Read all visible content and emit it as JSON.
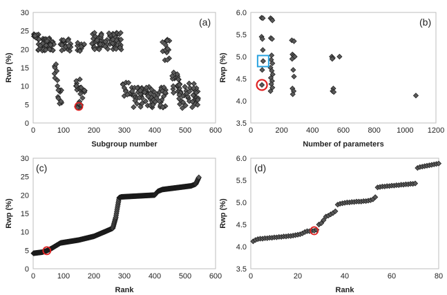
{
  "chart_data": [
    {
      "panel": "a",
      "type": "scatter",
      "label": "(a)",
      "xlabel": "Subgroup number",
      "ylabel": "Rwp (%)",
      "xlim": [
        0,
        600
      ],
      "ylim": [
        0,
        30
      ],
      "xticks": [
        "0",
        "100",
        "200",
        "300",
        "400",
        "500",
        "600"
      ],
      "yticks": [
        "0",
        "5",
        "10",
        "15",
        "20",
        "25",
        "30"
      ],
      "grid": false,
      "marker": "diamond",
      "clusters": [
        {
          "x": [
            2,
            20
          ],
          "y": [
            22.5,
            24.5
          ],
          "n": 12
        },
        {
          "x": [
            15,
            40
          ],
          "y": [
            19.5,
            23
          ],
          "n": 22
        },
        {
          "x": [
            40,
            70
          ],
          "y": [
            19.5,
            23
          ],
          "n": 24
        },
        {
          "x": [
            70,
            80
          ],
          "y": [
            10,
            19
          ],
          "n": 8
        },
        {
          "x": [
            80,
            95
          ],
          "y": [
            5,
            10
          ],
          "n": 10
        },
        {
          "x": [
            88,
            125
          ],
          "y": [
            19.5,
            23
          ],
          "n": 20
        },
        {
          "x": [
            140,
            170
          ],
          "y": [
            4,
            12
          ],
          "n": 24
        },
        {
          "x": [
            145,
            170
          ],
          "y": [
            19.5,
            22
          ],
          "n": 10
        },
        {
          "x": [
            190,
            290
          ],
          "y": [
            19.5,
            24.5
          ],
          "n": 70
        },
        {
          "x": [
            290,
            330
          ],
          "y": [
            6,
            11
          ],
          "n": 14
        },
        {
          "x": [
            330,
            440
          ],
          "y": [
            4,
            10
          ],
          "n": 70
        },
        {
          "x": [
            425,
            450
          ],
          "y": [
            17,
            23
          ],
          "n": 14
        },
        {
          "x": [
            455,
            480
          ],
          "y": [
            8,
            14
          ],
          "n": 14
        },
        {
          "x": [
            475,
            550
          ],
          "y": [
            4,
            11
          ],
          "n": 50
        }
      ],
      "highlight": {
        "x": 150,
        "y": 4.5,
        "color": "#e02020"
      }
    },
    {
      "panel": "b",
      "type": "scatter",
      "label": "(b)",
      "xlabel": "Number of parameters",
      "ylabel": "Rwp (%)",
      "xlim": [
        0,
        1200
      ],
      "ylim": [
        3.5,
        6.0
      ],
      "xticks": [
        "0",
        "200",
        "400",
        "600",
        "800",
        "1000",
        "1200"
      ],
      "yticks": [
        "3.5",
        "4.0",
        "4.5",
        "5.0",
        "5.5",
        "6.0"
      ],
      "grid": false,
      "marker": "diamond",
      "points": [
        [
          70,
          5.88
        ],
        [
          78,
          5.87
        ],
        [
          70,
          5.45
        ],
        [
          75,
          5.4
        ],
        [
          78,
          5.15
        ],
        [
          80,
          4.9
        ],
        [
          74,
          4.7
        ],
        [
          72,
          4.36
        ],
        [
          128,
          5.87
        ],
        [
          135,
          5.85
        ],
        [
          140,
          5.82
        ],
        [
          130,
          5.42
        ],
        [
          138,
          5.4
        ],
        [
          135,
          5.03
        ],
        [
          132,
          4.93
        ],
        [
          140,
          4.85
        ],
        [
          128,
          4.75
        ],
        [
          136,
          4.68
        ],
        [
          142,
          4.6
        ],
        [
          130,
          4.52
        ],
        [
          138,
          4.45
        ],
        [
          133,
          4.38
        ],
        [
          140,
          4.3
        ],
        [
          128,
          4.22
        ],
        [
          266,
          5.37
        ],
        [
          280,
          5.35
        ],
        [
          270,
          5.05
        ],
        [
          278,
          5.02
        ],
        [
          285,
          5.0
        ],
        [
          268,
          4.95
        ],
        [
          275,
          4.7
        ],
        [
          280,
          4.55
        ],
        [
          270,
          4.28
        ],
        [
          278,
          4.22
        ],
        [
          272,
          4.15
        ],
        [
          525,
          5.0
        ],
        [
          532,
          4.97
        ],
        [
          528,
          4.95
        ],
        [
          535,
          4.28
        ],
        [
          530,
          4.22
        ],
        [
          538,
          4.2
        ],
        [
          575,
          5.0
        ],
        [
          1070,
          4.12
        ]
      ],
      "highlight_circle": {
        "x": 72,
        "y": 4.36,
        "color": "#e02020"
      },
      "highlight_box": {
        "x": 80,
        "y": 4.9,
        "color": "#29a3e0"
      }
    },
    {
      "panel": "c",
      "type": "line",
      "label": "(c)",
      "xlabel": "Rank",
      "ylabel": "Rwp (%)",
      "xlim": [
        0,
        600
      ],
      "ylim": [
        0,
        30
      ],
      "xticks": [
        "0",
        "100",
        "200",
        "300",
        "400",
        "500",
        "600"
      ],
      "yticks": [
        "0",
        "5",
        "10",
        "15",
        "20",
        "25",
        "30"
      ],
      "grid": false,
      "marker": "diamond",
      "n_points": 545,
      "curve": [
        [
          1,
          4.2
        ],
        [
          30,
          4.5
        ],
        [
          45,
          4.9
        ],
        [
          60,
          5.5
        ],
        [
          90,
          7.0
        ],
        [
          150,
          7.8
        ],
        [
          200,
          8.8
        ],
        [
          240,
          10.2
        ],
        [
          262,
          11.0
        ],
        [
          272,
          14.0
        ],
        [
          278,
          17.0
        ],
        [
          283,
          19.3
        ],
        [
          290,
          19.5
        ],
        [
          400,
          20.0
        ],
        [
          410,
          21.0
        ],
        [
          425,
          21.5
        ],
        [
          520,
          22.5
        ],
        [
          535,
          23.0
        ],
        [
          545,
          24.8
        ]
      ],
      "highlight": {
        "x": 45,
        "y": 4.9,
        "color": "#e02020"
      }
    },
    {
      "panel": "d",
      "type": "line",
      "label": "(d)",
      "xlabel": "Rank",
      "ylabel": "Rwp (%)",
      "xlim": [
        0,
        80
      ],
      "ylim": [
        3.5,
        6.0
      ],
      "xticks": [
        "0",
        "20",
        "40",
        "60",
        "80"
      ],
      "yticks": [
        "3.5",
        "4.0",
        "4.5",
        "5.0",
        "5.5",
        "6.0"
      ],
      "grid": false,
      "marker": "diamond",
      "values": [
        4.12,
        4.15,
        4.17,
        4.18,
        4.18,
        4.19,
        4.19,
        4.2,
        4.2,
        4.21,
        4.21,
        4.22,
        4.22,
        4.23,
        4.23,
        4.24,
        4.24,
        4.25,
        4.26,
        4.27,
        4.28,
        4.3,
        4.33,
        4.35,
        4.35,
        4.36,
        4.36,
        4.38,
        4.5,
        4.53,
        4.6,
        4.68,
        4.7,
        4.73,
        4.76,
        4.8,
        4.95,
        4.97,
        4.98,
        4.99,
        5.0,
        5.0,
        5.01,
        5.01,
        5.02,
        5.02,
        5.02,
        5.03,
        5.03,
        5.04,
        5.05,
        5.07,
        5.12,
        5.34,
        5.35,
        5.36,
        5.36,
        5.37,
        5.37,
        5.38,
        5.38,
        5.39,
        5.39,
        5.4,
        5.4,
        5.41,
        5.41,
        5.42,
        5.42,
        5.43,
        5.78,
        5.8,
        5.81,
        5.82,
        5.83,
        5.84,
        5.85,
        5.86,
        5.87,
        5.88
      ],
      "highlight": {
        "x": 27,
        "y": 4.36,
        "color": "#e02020"
      }
    }
  ]
}
